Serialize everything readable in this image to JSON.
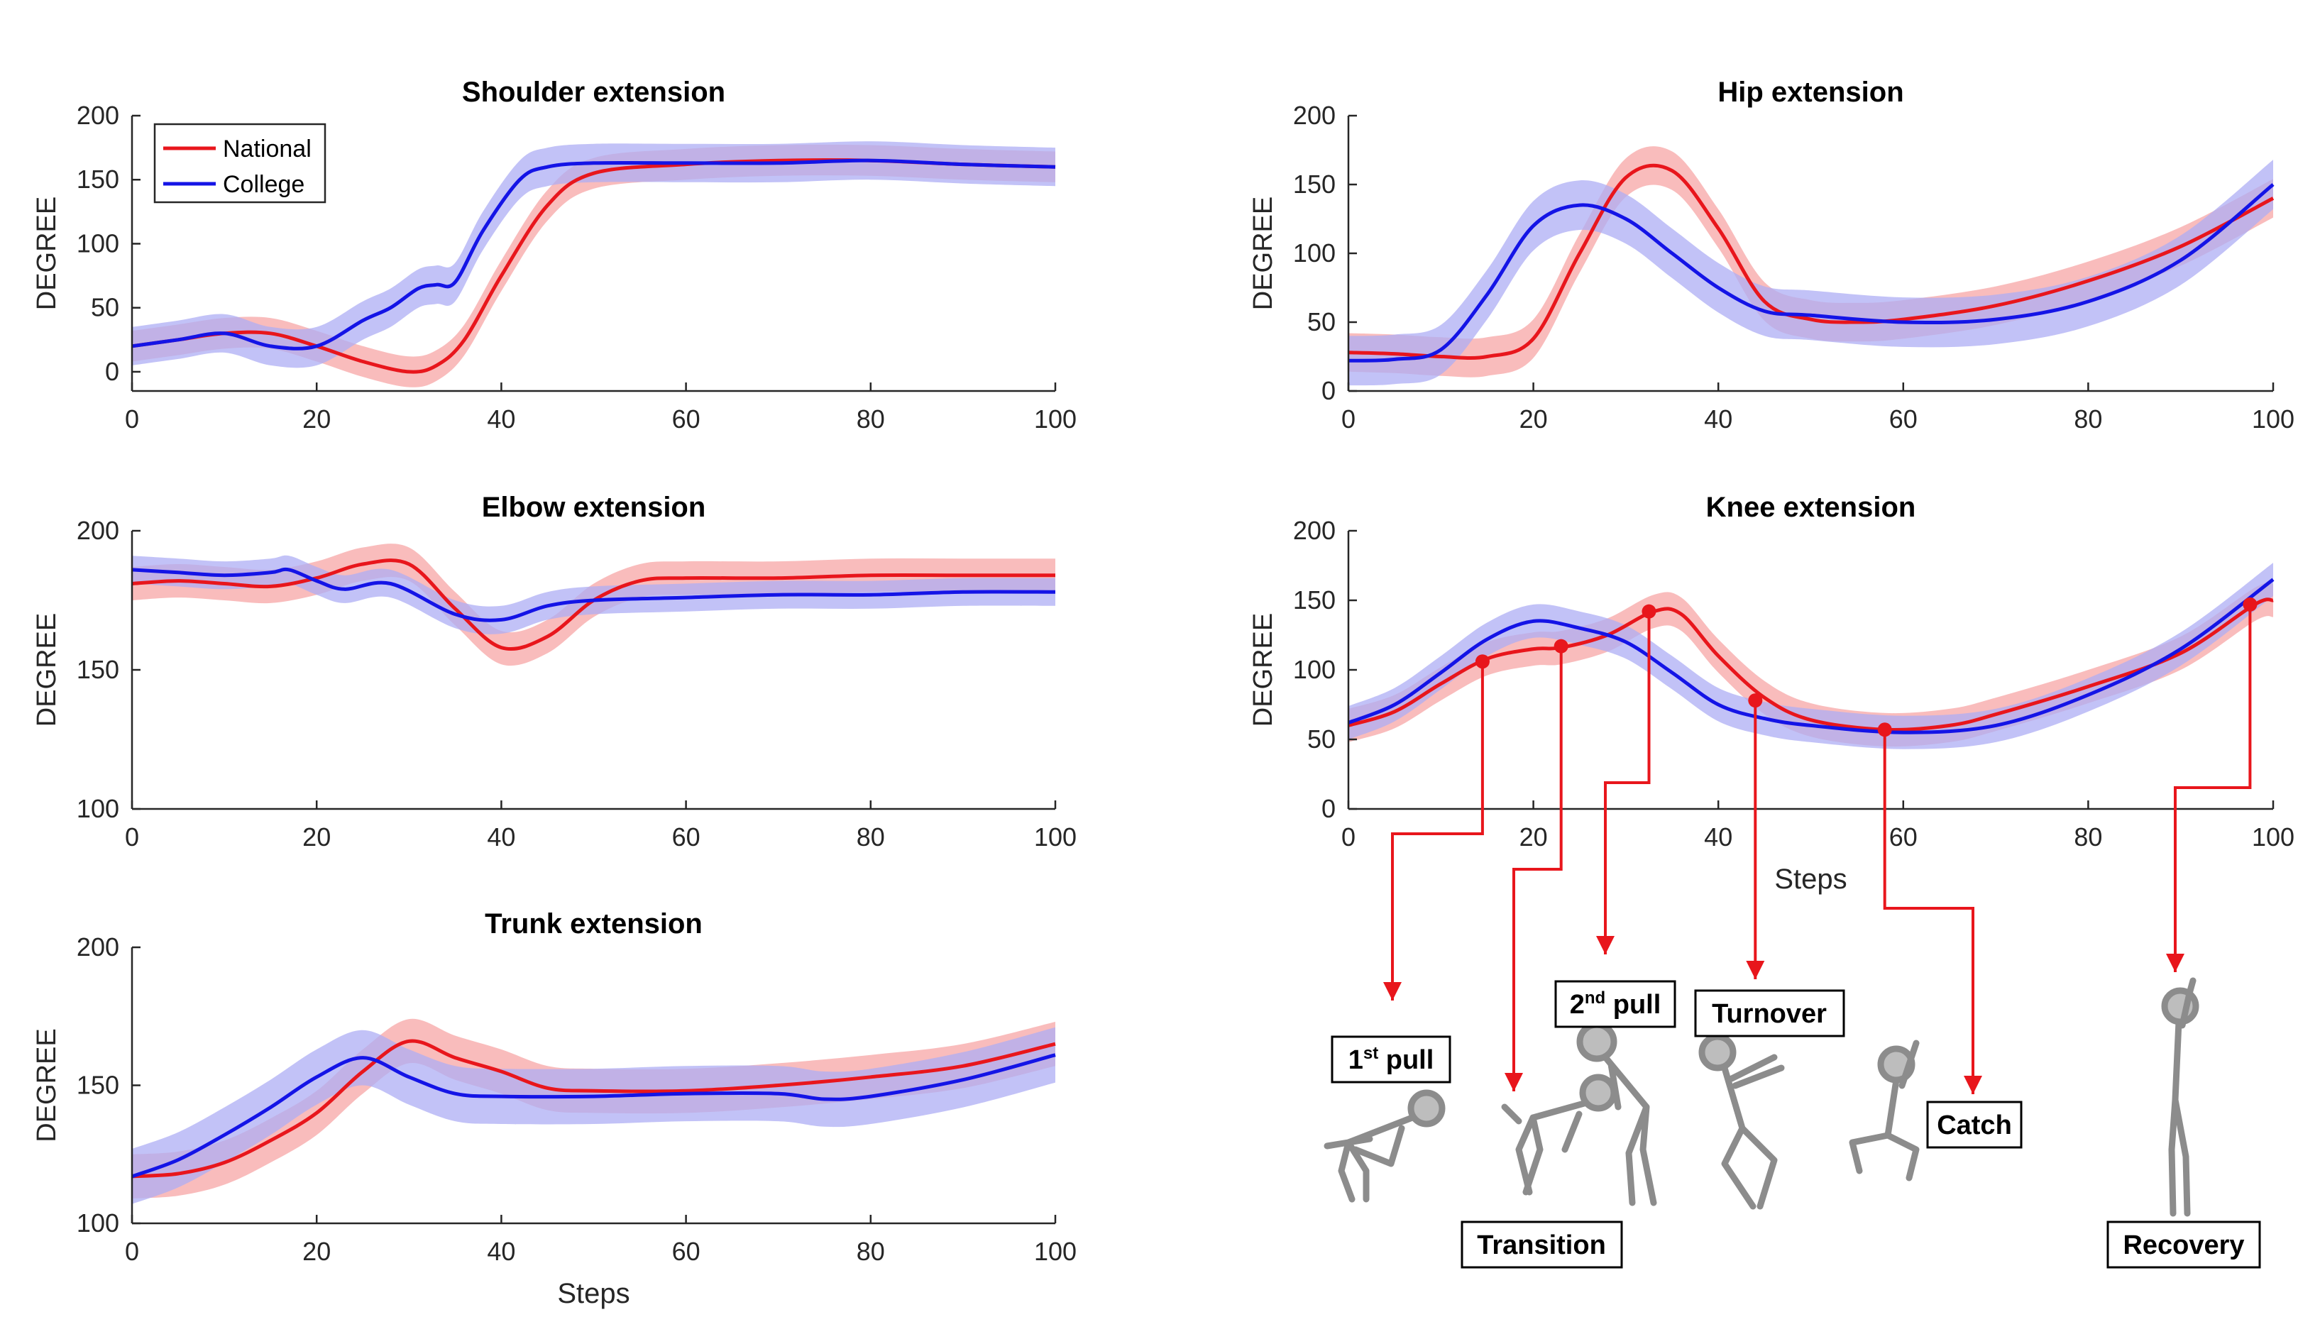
{
  "colors": {
    "national": "#e8161c",
    "college": "#1414e6",
    "national_band": "#f7a6a6",
    "college_band": "#aeaef4",
    "phase_arrow": "#e8161c"
  },
  "chart_data": [
    {
      "type": "line",
      "title": "Shoulder extension",
      "xlabel": "",
      "ylabel": "DEGREE",
      "xlim": [
        0,
        100
      ],
      "ylim": [
        -15,
        200
      ],
      "xticks": [
        "0",
        "20",
        "40",
        "60",
        "80",
        "100"
      ],
      "yticks": [
        "0",
        "50",
        "100",
        "150",
        "200"
      ],
      "legend": {
        "position": "top-left",
        "entries": [
          "National",
          "College"
        ]
      },
      "series": [
        {
          "name": "National",
          "band": 12,
          "x": [
            0,
            5,
            10,
            15,
            20,
            25,
            30,
            33,
            36,
            40,
            45,
            50,
            60,
            70,
            80,
            90,
            100
          ],
          "y": [
            20,
            25,
            30,
            30,
            20,
            8,
            0,
            5,
            25,
            75,
            130,
            155,
            162,
            165,
            165,
            162,
            160
          ]
        },
        {
          "name": "College",
          "band": 15,
          "x": [
            0,
            5,
            10,
            15,
            20,
            25,
            28,
            31,
            33,
            35,
            38,
            42,
            45,
            50,
            60,
            70,
            80,
            90,
            100
          ],
          "y": [
            20,
            25,
            30,
            20,
            20,
            40,
            50,
            65,
            68,
            70,
            110,
            150,
            160,
            163,
            163,
            163,
            165,
            162,
            160
          ]
        }
      ]
    },
    {
      "type": "line",
      "title": "Elbow extension",
      "xlabel": "",
      "ylabel": "DEGREE",
      "xlim": [
        0,
        100
      ],
      "ylim": [
        100,
        200
      ],
      "xticks": [
        "0",
        "20",
        "40",
        "60",
        "80",
        "100"
      ],
      "yticks": [
        "100",
        "150",
        "200"
      ],
      "series": [
        {
          "name": "National",
          "band": 6,
          "x": [
            0,
            5,
            10,
            15,
            20,
            25,
            30,
            35,
            40,
            45,
            50,
            55,
            60,
            70,
            80,
            90,
            100
          ],
          "y": [
            181,
            182,
            181,
            180,
            183,
            188,
            188,
            172,
            158,
            162,
            175,
            182,
            183,
            183,
            184,
            184,
            184
          ]
        },
        {
          "name": "College",
          "band": 5,
          "x": [
            0,
            5,
            10,
            15,
            17,
            20,
            23,
            28,
            35,
            40,
            45,
            50,
            60,
            70,
            80,
            90,
            100
          ],
          "y": [
            186,
            185,
            184,
            185,
            186,
            182,
            179,
            181,
            170,
            168,
            173,
            175,
            176,
            177,
            177,
            178,
            178
          ]
        }
      ]
    },
    {
      "type": "line",
      "title": "Trunk extension",
      "xlabel": "Steps",
      "ylabel": "DEGREE",
      "xlim": [
        0,
        100
      ],
      "ylim": [
        100,
        200
      ],
      "xticks": [
        "0",
        "20",
        "40",
        "60",
        "80",
        "100"
      ],
      "yticks": [
        "100",
        "150",
        "200"
      ],
      "series": [
        {
          "name": "National",
          "band": 8,
          "x": [
            0,
            5,
            10,
            15,
            20,
            25,
            30,
            35,
            40,
            45,
            50,
            60,
            70,
            80,
            90,
            100
          ],
          "y": [
            117,
            118,
            122,
            130,
            140,
            155,
            166,
            160,
            155,
            149,
            148,
            148,
            150,
            153,
            157,
            165
          ]
        },
        {
          "name": "College",
          "band": 10,
          "x": [
            0,
            5,
            10,
            15,
            20,
            25,
            30,
            35,
            40,
            50,
            60,
            70,
            75,
            80,
            90,
            100
          ],
          "y": [
            117,
            123,
            132,
            142,
            153,
            160,
            153,
            147,
            146,
            146,
            147,
            147,
            145,
            146,
            152,
            161
          ]
        }
      ]
    },
    {
      "type": "line",
      "title": "Hip extension",
      "xlabel": "",
      "ylabel": "DEGREE",
      "xlim": [
        0,
        100
      ],
      "ylim": [
        0,
        200
      ],
      "xticks": [
        "0",
        "20",
        "40",
        "60",
        "80",
        "100"
      ],
      "yticks": [
        "0",
        "50",
        "100",
        "150",
        "200"
      ],
      "series": [
        {
          "name": "National",
          "band": 14,
          "x": [
            0,
            5,
            10,
            15,
            20,
            25,
            30,
            35,
            40,
            45,
            50,
            55,
            60,
            70,
            80,
            90,
            100
          ],
          "y": [
            28,
            27,
            25,
            25,
            38,
            100,
            155,
            160,
            118,
            65,
            52,
            50,
            52,
            62,
            80,
            105,
            140
          ]
        },
        {
          "name": "College",
          "band": 18,
          "x": [
            0,
            5,
            10,
            15,
            20,
            25,
            30,
            35,
            40,
            45,
            50,
            60,
            70,
            80,
            90,
            100
          ],
          "y": [
            22,
            23,
            30,
            70,
            120,
            135,
            125,
            100,
            75,
            58,
            55,
            50,
            52,
            65,
            95,
            150
          ]
        }
      ]
    },
    {
      "type": "line",
      "title": "Knee extension",
      "xlabel": "Steps",
      "ylabel": "DEGREE",
      "xlim": [
        0,
        100
      ],
      "ylim": [
        0,
        200
      ],
      "xticks": [
        "0",
        "20",
        "40",
        "60",
        "80",
        "100"
      ],
      "yticks": [
        "0",
        "50",
        "100",
        "150",
        "200"
      ],
      "series": [
        {
          "name": "National",
          "band": 12,
          "x": [
            0,
            5,
            10,
            15,
            20,
            23,
            28,
            33,
            36,
            40,
            45,
            50,
            58,
            65,
            70,
            80,
            90,
            98,
            100
          ],
          "y": [
            60,
            70,
            90,
            108,
            115,
            116,
            125,
            142,
            140,
            110,
            80,
            64,
            57,
            60,
            68,
            88,
            112,
            147,
            150
          ]
        },
        {
          "name": "College",
          "band": 12,
          "x": [
            0,
            5,
            10,
            15,
            20,
            25,
            30,
            35,
            40,
            45,
            50,
            60,
            70,
            80,
            90,
            100
          ],
          "y": [
            62,
            75,
            98,
            122,
            135,
            130,
            120,
            98,
            75,
            65,
            60,
            55,
            60,
            82,
            115,
            165
          ]
        }
      ],
      "phase_markers": [
        {
          "label": "1st pull",
          "x": 14.5,
          "y": 106
        },
        {
          "label": "Transition",
          "x": 23,
          "y": 117
        },
        {
          "label": "2nd pull",
          "x": 32.5,
          "y": 142
        },
        {
          "label": "Turnover",
          "x": 44,
          "y": 78
        },
        {
          "label": "Catch",
          "x": 58,
          "y": 57
        },
        {
          "label": "Recovery",
          "x": 97.5,
          "y": 147
        }
      ]
    }
  ],
  "phases": {
    "first_pull": {
      "main": "1",
      "sup": "st",
      "rest": " pull"
    },
    "transition": "Transition",
    "second_pull": {
      "main": "2",
      "sup": "nd",
      "rest": " pull"
    },
    "turnover": "Turnover",
    "catch": "Catch",
    "recovery": "Recovery"
  }
}
